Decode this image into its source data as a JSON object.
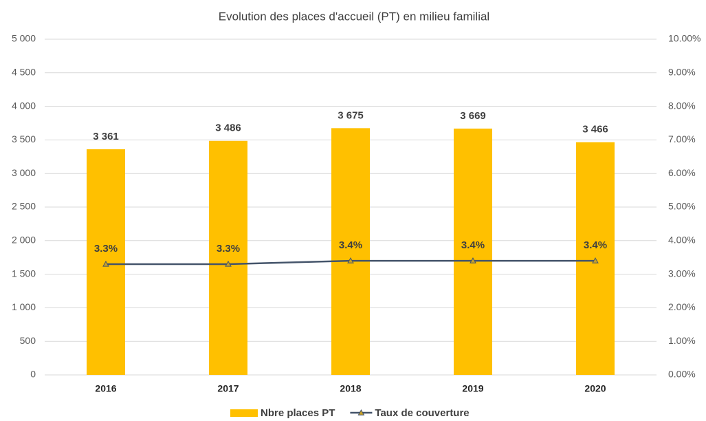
{
  "chart_data": {
    "type": "bar",
    "title": "Evolution des places d'accueil (PT) en milieu familial",
    "categories": [
      "2016",
      "2017",
      "2018",
      "2019",
      "2020"
    ],
    "series": [
      {
        "name": "Nbre places PT",
        "color": "#FFC000",
        "values": [
          3361,
          3486,
          3675,
          3669,
          3466
        ],
        "value_labels": [
          "3 361",
          "3 486",
          "3 675",
          "3 669",
          "3 466"
        ]
      },
      {
        "name": "Taux de couverture",
        "color": "#44546A",
        "type": "line",
        "axis": "y2",
        "values": [
          3.3,
          3.3,
          3.4,
          3.4,
          3.4
        ],
        "value_labels": [
          "3.3%",
          "3.3%",
          "3.4%",
          "3.4%",
          "3.4%"
        ]
      }
    ],
    "ylim": [
      0,
      5000
    ],
    "yticks": [
      0,
      500,
      {
        "value": 1000,
        "label": "1 000"
      },
      {
        "value": 1500,
        "label": "1 500"
      },
      {
        "value": 2000,
        "label": "2 000"
      },
      {
        "value": 2500,
        "label": "2 500"
      },
      {
        "value": 3000,
        "label": "3 000"
      },
      {
        "value": 3500,
        "label": "3 500"
      },
      {
        "value": 4000,
        "label": "4 000"
      },
      {
        "value": 4500,
        "label": "4 500"
      },
      {
        "value": 5000,
        "label": "5 000"
      }
    ],
    "y2lim": [
      0,
      10
    ],
    "y2ticks": [
      {
        "value": 0,
        "label": "0.00%"
      },
      {
        "value": 1,
        "label": "1.00%"
      },
      {
        "value": 2,
        "label": "2.00%"
      },
      {
        "value": 3,
        "label": "3.00%"
      },
      {
        "value": 4,
        "label": "4.00%"
      },
      {
        "value": 5,
        "label": "5.00%"
      },
      {
        "value": 6,
        "label": "6.00%"
      },
      {
        "value": 7,
        "label": "7.00%"
      },
      {
        "value": 8,
        "label": "8.00%"
      },
      {
        "value": 9,
        "label": "9.00%"
      },
      {
        "value": 10,
        "label": "10.00%"
      }
    ],
    "grid": true,
    "legend": "bottom"
  }
}
